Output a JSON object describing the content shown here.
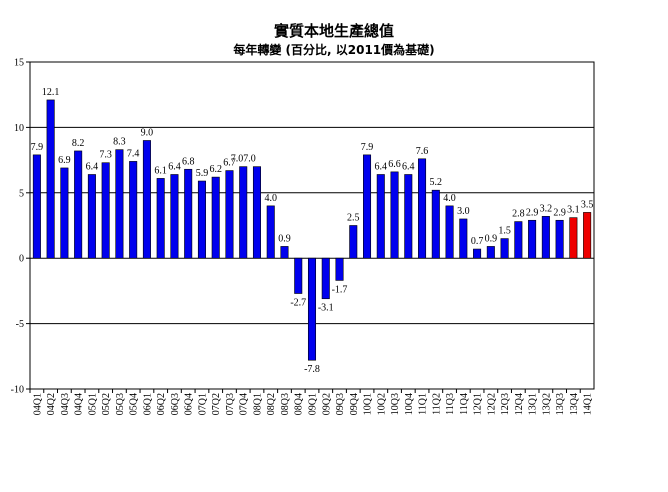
{
  "chart_data": {
    "type": "bar",
    "title": "實質本地生產總值",
    "subtitle": "每年轉變 (百分比, 以2011價為基礎)",
    "xlabel": "",
    "ylabel": "",
    "ylim": [
      -10,
      15
    ],
    "yticks": [
      -10,
      -5,
      0,
      5,
      10,
      15
    ],
    "grid": true,
    "legend": "none",
    "colors": {
      "actual": "#0000ee",
      "latest": "#ee0000",
      "grid": "#000000"
    },
    "categories": [
      "04Q1",
      "04Q2",
      "04Q3",
      "04Q4",
      "05Q1",
      "05Q2",
      "05Q3",
      "05Q4",
      "06Q1",
      "06Q2",
      "06Q3",
      "06Q4",
      "07Q1",
      "07Q2",
      "07Q3",
      "07Q4",
      "08Q1",
      "08Q2",
      "08Q3",
      "08Q4",
      "09Q1",
      "09Q2",
      "09Q3",
      "09Q4",
      "10Q1",
      "10Q2",
      "10Q3",
      "10Q4",
      "11Q1",
      "11Q2",
      "11Q3",
      "11Q4",
      "12Q1",
      "12Q2",
      "12Q3",
      "12Q4",
      "13Q1",
      "13Q2",
      "13Q3",
      "13Q4",
      "14Q1"
    ],
    "values": [
      7.9,
      12.1,
      6.9,
      8.2,
      6.4,
      7.3,
      8.3,
      7.4,
      9.0,
      6.1,
      6.4,
      6.8,
      5.9,
      6.2,
      6.7,
      7.0,
      7.0,
      4.0,
      0.9,
      -2.7,
      -7.8,
      -3.1,
      -1.7,
      2.5,
      7.9,
      6.4,
      6.6,
      6.4,
      7.6,
      5.2,
      4.0,
      3.0,
      0.7,
      0.9,
      1.5,
      2.8,
      2.9,
      3.2,
      2.9,
      3.1,
      3.5
    ],
    "labels": [
      "7.9",
      "12.1",
      "6.9",
      "8.2",
      "6.4",
      "7.3",
      "8.3",
      "7.4",
      "9.0",
      "6.1",
      "6.4",
      "6.8",
      "5.9",
      "6.2",
      "6.7",
      "7.07.0",
      "",
      "4.0",
      "0.9",
      "-2.7",
      "-7.8",
      "-3.1",
      "-1.7",
      "2.5",
      "7.9",
      "6.4",
      "6.6",
      "6.4",
      "7.6",
      "5.2",
      "4.0",
      "3.0",
      "0.7",
      "0.9",
      "1.5",
      "2.8",
      "2.9",
      "3.2",
      "2.9",
      "3.1",
      "3.5"
    ],
    "highlight_count": 2
  }
}
